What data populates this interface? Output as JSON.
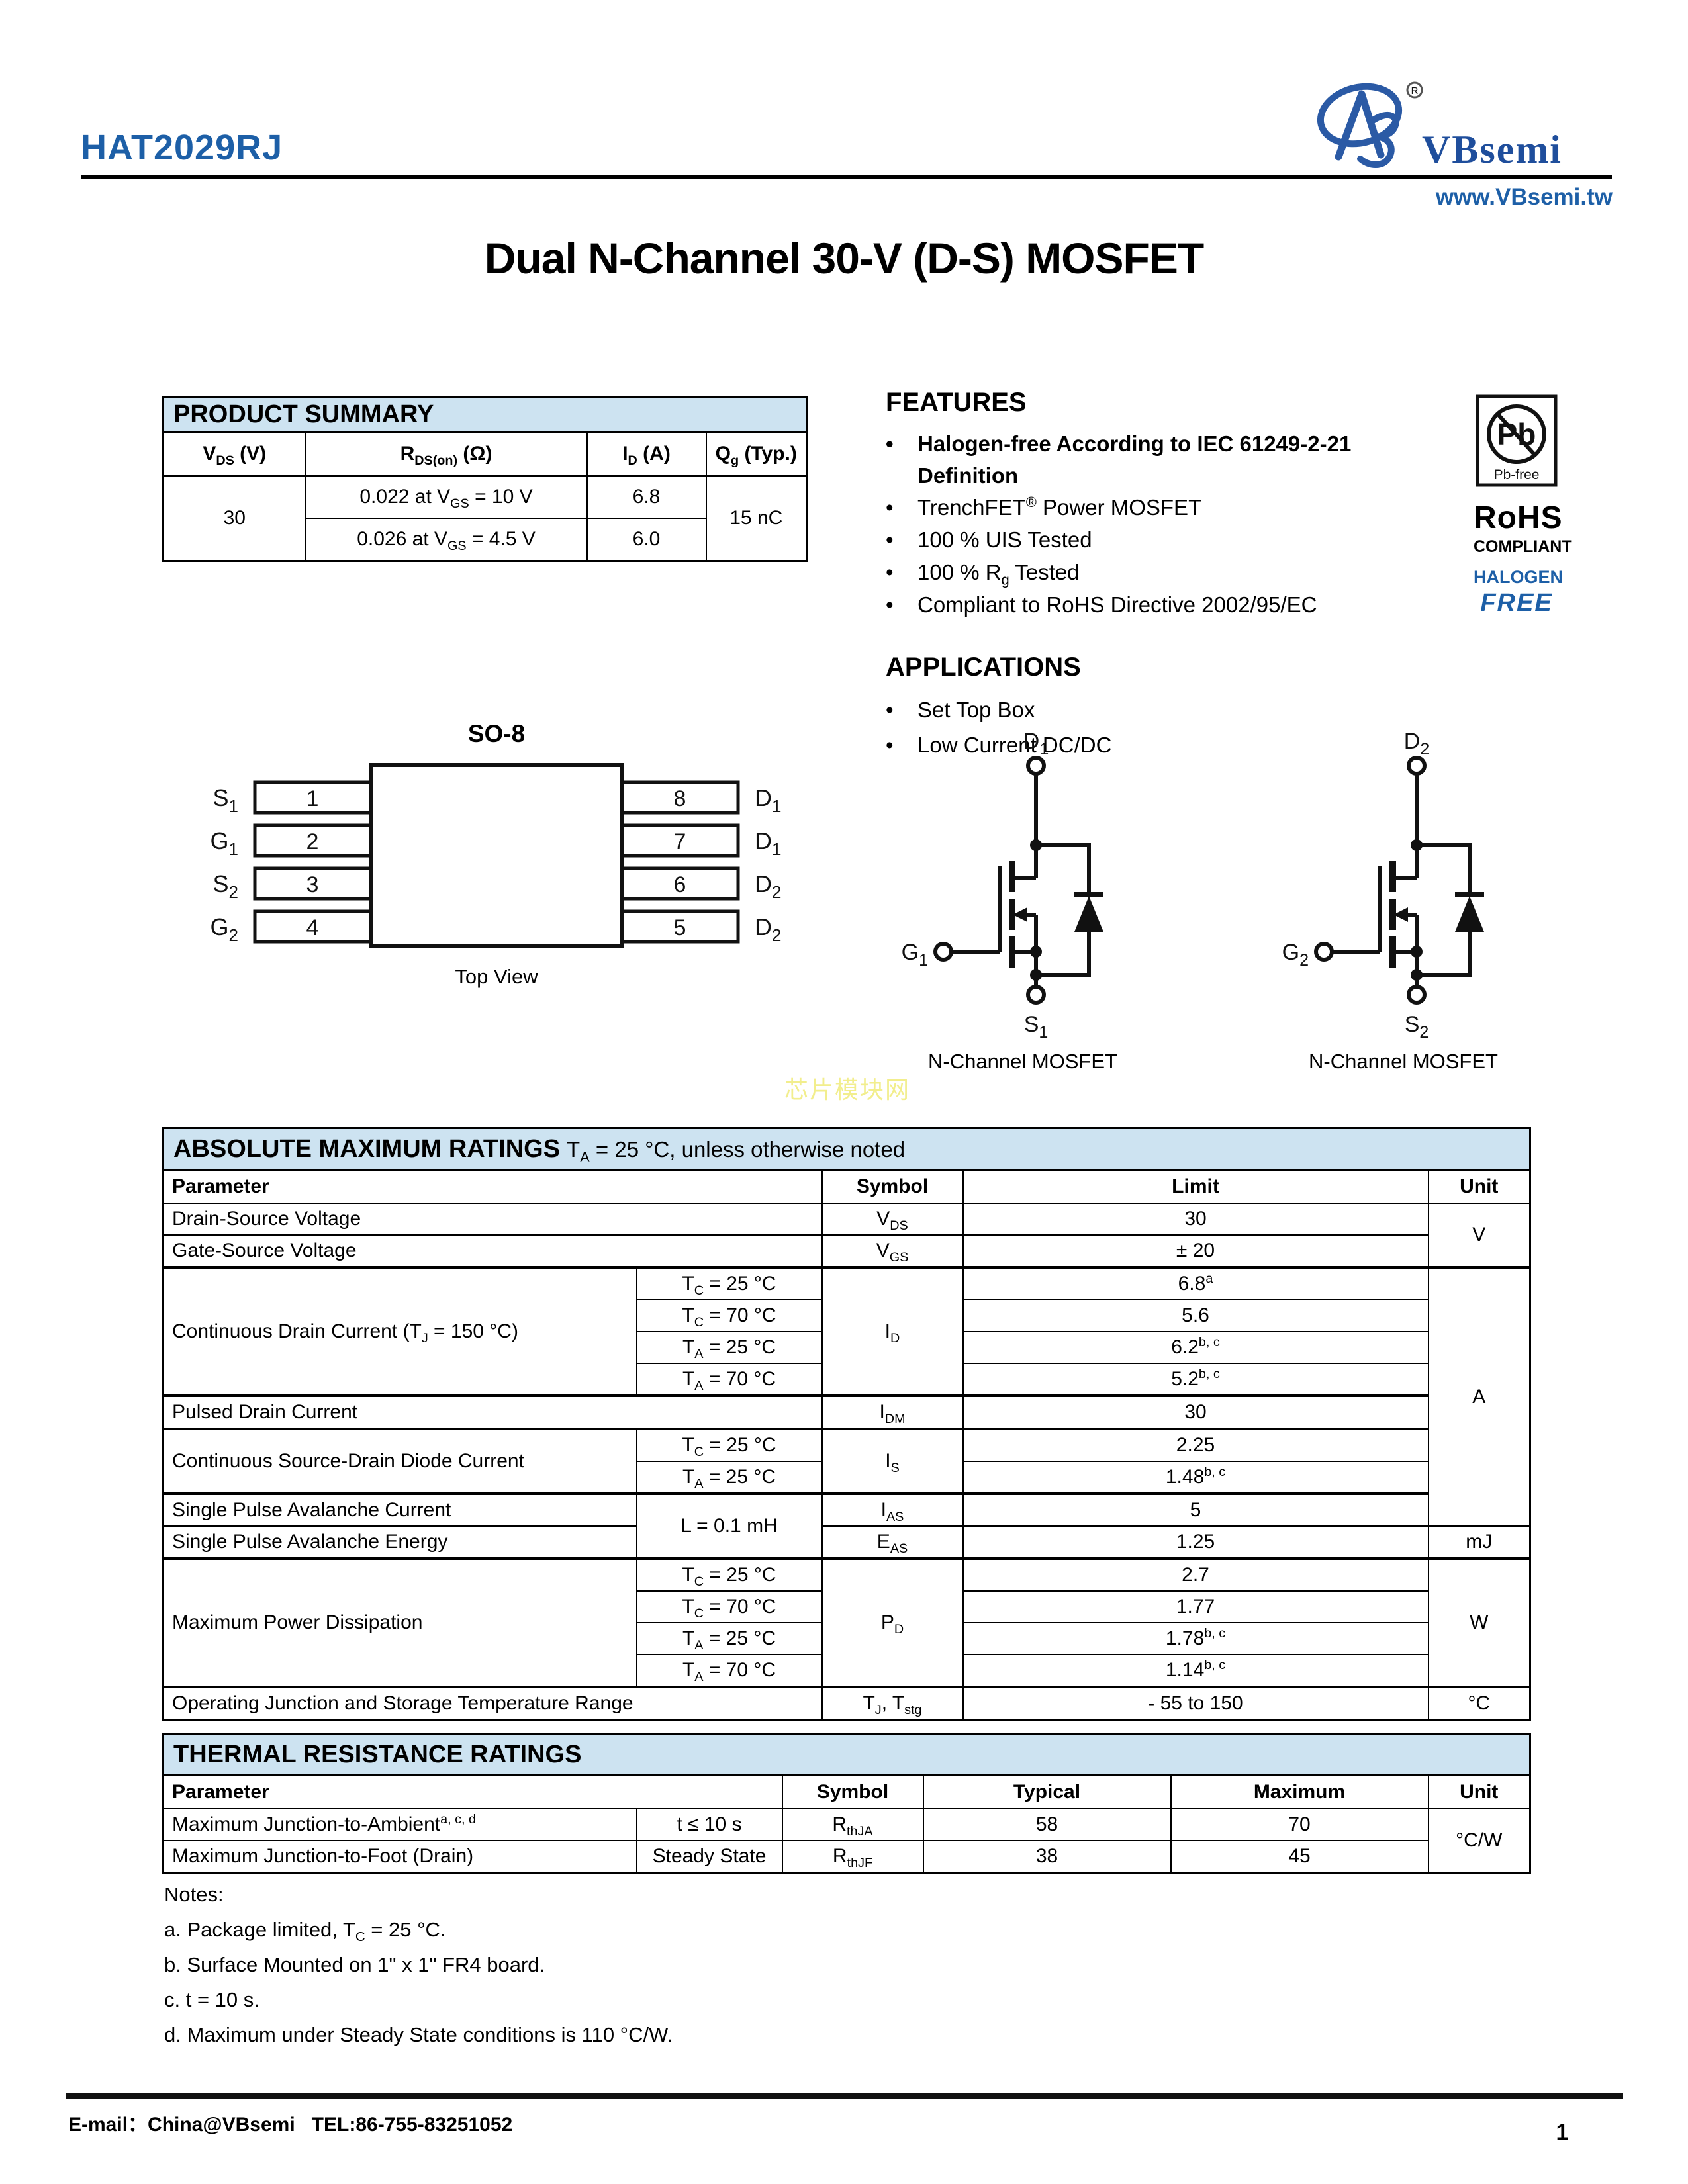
{
  "header": {
    "part_number": "HAT2029RJ",
    "brand": "VBsemi",
    "registered_mark": "R",
    "website": "www.VBsemi.tw",
    "accent_color": "#1d5fa7"
  },
  "title": "Dual N-Channel 30-V (D-S) MOSFET",
  "product_summary": {
    "title": "PRODUCT SUMMARY",
    "columns": [
      "V_DS_ (V)",
      "R_DS(on)_ (Ω)",
      "I_D_ (A)",
      "Q_g_ (Typ.)"
    ],
    "vds": "30",
    "rows": [
      {
        "rds": "0.022 at V_GS_ = 10 V",
        "id": "6.8"
      },
      {
        "rds": "0.026 at V_GS_ = 4.5 V",
        "id": "6.0"
      }
    ],
    "qg": "15 nC"
  },
  "features": {
    "title": "FEATURES",
    "items": [
      {
        "text": "Halogen-free According to IEC 61249-2-21 Definition"
      },
      {
        "text": "TrenchFET^®^ Power MOSFET"
      },
      {
        "text": "100 % UIS Tested"
      },
      {
        "text": "100 % R_g_ Tested"
      },
      {
        "text": "Compliant to RoHS Directive 2002/95/EC"
      }
    ]
  },
  "applications": {
    "title": "APPLICATIONS",
    "items": [
      "Set Top Box",
      "Low Current DC/DC"
    ]
  },
  "badge": {
    "pb": "Pb",
    "pb_free": "Pb-free",
    "rohs": "RoHS",
    "compliant": "COMPLIANT",
    "halogen": "HALOGEN",
    "free": "FREE"
  },
  "package_diagram": {
    "title": "SO-8",
    "caption": "Top View",
    "left_pins": [
      {
        "main": "S",
        "sub": "1",
        "number": "1"
      },
      {
        "main": "G",
        "sub": "1",
        "number": "2"
      },
      {
        "main": "S",
        "sub": "2",
        "number": "3"
      },
      {
        "main": "G",
        "sub": "2",
        "number": "4"
      }
    ],
    "right_pins": [
      {
        "number": "8",
        "main": "D",
        "sub": "1"
      },
      {
        "number": "7",
        "main": "D",
        "sub": "1"
      },
      {
        "number": "6",
        "main": "D",
        "sub": "2"
      },
      {
        "number": "5",
        "main": "D",
        "sub": "2"
      }
    ]
  },
  "schematics": [
    {
      "d_main": "D",
      "d_sub": "1",
      "g_main": "G",
      "g_sub": "1",
      "s_main": "S",
      "s_sub": "1",
      "caption": "N-Channel MOSFET"
    },
    {
      "d_main": "D",
      "d_sub": "2",
      "g_main": "G",
      "g_sub": "2",
      "s_main": "S",
      "s_sub": "2",
      "caption": "N-Channel MOSFET"
    }
  ],
  "watermark": "芯片模块网",
  "abs_max": {
    "title": "ABSOLUTE MAXIMUM RATINGS",
    "title_note": "T_A_ = 25 °C, unless otherwise noted",
    "columns": {
      "parameter": "Parameter",
      "symbol": "Symbol",
      "limit": "Limit",
      "unit": "Unit"
    },
    "rows": {
      "vds": {
        "parameter": "Drain-Source Voltage",
        "symbol": "V_DS_",
        "limit": "30"
      },
      "vgs": {
        "parameter": "Gate-Source Voltage",
        "symbol": "V_GS_",
        "limit": "± 20"
      },
      "unit_v": "V",
      "id": {
        "parameter": "Continuous Drain Current (T_J_ = 150 °C)",
        "symbol": "I_D_",
        "conditions": [
          "T_C_ = 25 °C",
          "T_C_ = 70 °C",
          "T_A_ = 25 °C",
          "T_A_ = 70 °C"
        ],
        "limits": [
          "6.8^a^",
          "5.6",
          "6.2^b, c^",
          "5.2^b, c^"
        ]
      },
      "idm": {
        "parameter": "Pulsed Drain Current",
        "symbol": "I_DM_",
        "limit": "30"
      },
      "unit_a": "A",
      "is": {
        "parameter": "Continuous Source-Drain Diode Current",
        "symbol": "I_S_",
        "conditions": [
          "T_C_ = 25 °C",
          "T_A_ = 25 °C"
        ],
        "limits": [
          "2.25",
          "1.48^b, c^"
        ]
      },
      "ias": {
        "parameter": "Single Pulse Avalanche Current",
        "condition": "L = 0.1 mH",
        "symbol": "I_AS_",
        "limit": "5"
      },
      "eas": {
        "parameter": "Single Pulse Avalanche Energy",
        "symbol": "E_AS_",
        "limit": "1.25",
        "unit": "mJ"
      },
      "pd": {
        "parameter": "Maximum Power Dissipation",
        "symbol": "P_D_",
        "conditions": [
          "T_C_ = 25 °C",
          "T_C_ = 70 °C",
          "T_A_ = 25 °C",
          "T_A_ = 70 °C"
        ],
        "limits": [
          "2.7",
          "1.77",
          "1.78^b, c^",
          "1.14^b, c^"
        ],
        "unit": "W"
      },
      "tj": {
        "parameter": "Operating Junction and Storage Temperature Range",
        "symbol": "T_J_, T_stg_",
        "limit": "- 55 to 150",
        "unit": "°C"
      }
    }
  },
  "thermal": {
    "title": "THERMAL RESISTANCE RATINGS",
    "columns": {
      "parameter": "Parameter",
      "symbol": "Symbol",
      "typical": "Typical",
      "maximum": "Maximum",
      "unit": "Unit"
    },
    "rows": [
      {
        "parameter": "Maximum Junction-to-Ambient^a, c, d^",
        "condition": "t ≤ 10 s",
        "symbol": "R_thJA_",
        "typical": "58",
        "maximum": "70"
      },
      {
        "parameter": "Maximum Junction-to-Foot (Drain)",
        "condition": "Steady State",
        "symbol": "R_thJF_",
        "typical": "38",
        "maximum": "45"
      }
    ],
    "unit": "°C/W"
  },
  "notes": {
    "title": "Notes:",
    "items": [
      "a. Package limited, T_C_ = 25 °C.",
      "b. Surface Mounted on 1\" x 1\" FR4 board.",
      "c. t = 10 s.",
      "d. Maximum under Steady State conditions is 110 °C/W."
    ]
  },
  "footer": {
    "contact": "E-mail：China@VBsemi   TEL:86-755-83251052",
    "page": "1"
  }
}
